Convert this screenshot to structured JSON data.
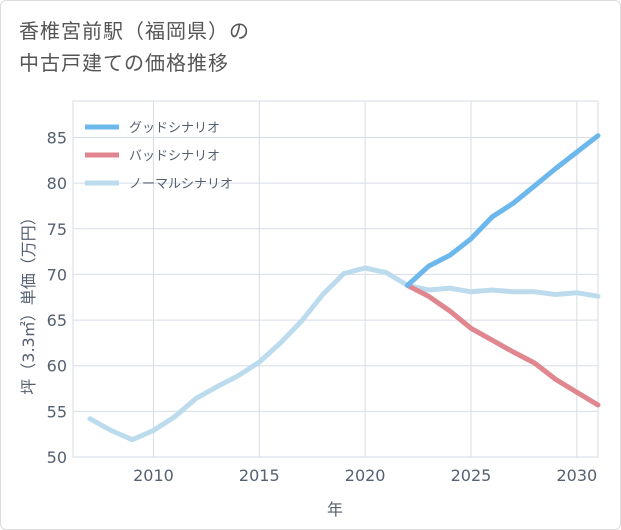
{
  "title_line1": "香椎宮前駅（福岡県）の",
  "title_line2": "中古戸建ての価格推移",
  "chart_data": {
    "type": "line",
    "xlabel": "年",
    "ylabel": "坪（3.3㎡）単価（万円）",
    "xlim": [
      2006.2,
      2031
    ],
    "ylim": [
      50,
      89
    ],
    "x_ticks": [
      2010,
      2015,
      2020,
      2025,
      2030
    ],
    "y_ticks": [
      50,
      55,
      60,
      65,
      70,
      75,
      80,
      85
    ],
    "grid": true,
    "legend_position": "top-left",
    "series": [
      {
        "name": "グッドシナリオ",
        "color": "#6cb8ec",
        "x": [
          2022,
          2023,
          2024,
          2025,
          2026,
          2027,
          2028,
          2029,
          2030,
          2031
        ],
        "y": [
          68.8,
          70.9,
          72.1,
          73.9,
          76.3,
          77.8,
          79.7,
          81.6,
          83.4,
          85.2
        ]
      },
      {
        "name": "バッドシナリオ",
        "color": "#e0868f",
        "x": [
          2022,
          2023,
          2024,
          2025,
          2026,
          2027,
          2028,
          2029,
          2030,
          2031
        ],
        "y": [
          68.8,
          67.6,
          66.0,
          64.1,
          62.8,
          61.5,
          60.3,
          58.5,
          57.1,
          55.7
        ]
      },
      {
        "name": "ノーマルシナリオ",
        "color": "#bcdcee",
        "x": [
          2007,
          2008,
          2009,
          2010,
          2011,
          2012,
          2013,
          2014,
          2015,
          2016,
          2017,
          2018,
          2019,
          2020,
          2021,
          2022,
          2023,
          2024,
          2025,
          2026,
          2027,
          2028,
          2029,
          2030,
          2031
        ],
        "y": [
          54.2,
          52.9,
          51.9,
          52.9,
          54.4,
          56.4,
          57.7,
          58.9,
          60.4,
          62.5,
          64.9,
          67.8,
          70.1,
          70.7,
          70.2,
          68.8,
          68.3,
          68.5,
          68.1,
          68.3,
          68.1,
          68.1,
          67.8,
          68.0,
          67.6
        ]
      }
    ]
  }
}
